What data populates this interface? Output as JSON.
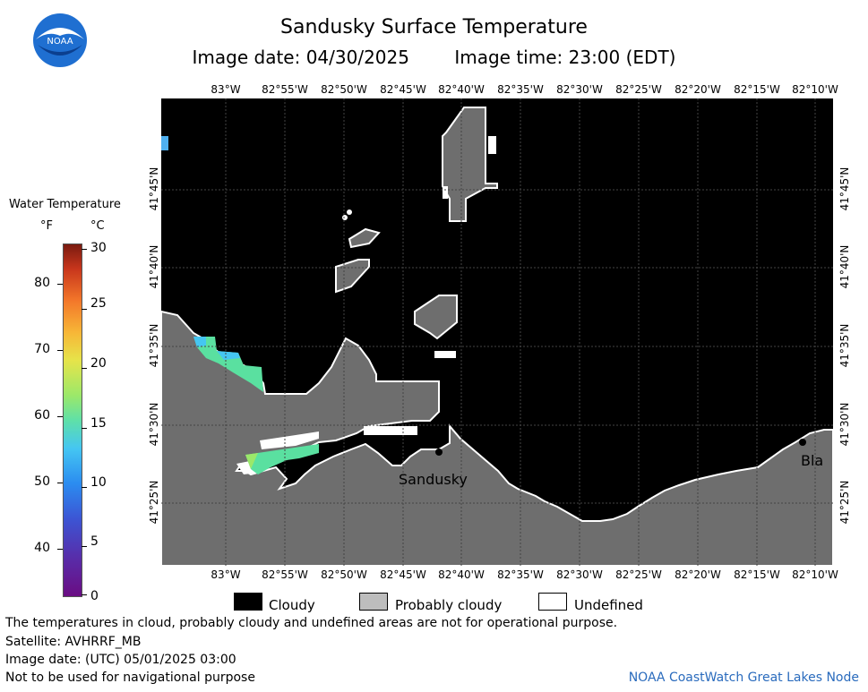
{
  "header": {
    "title": "Sandusky Surface Temperature",
    "image_date": "Image date: 04/30/2025",
    "image_time": "Image time: 23:00 (EDT)"
  },
  "logo": {
    "text": "NOAA",
    "icon": "noaa-logo-icon"
  },
  "map": {
    "lon_labels": [
      "83°W",
      "82°55'W",
      "82°50'W",
      "82°45'W",
      "82°40'W",
      "82°35'W",
      "82°30'W",
      "82°25'W",
      "82°20'W",
      "82°15'W",
      "82°10'W"
    ],
    "lat_labels": [
      "41°45'N",
      "41°40'N",
      "41°35'N",
      "41°30'N",
      "41°25'N"
    ],
    "place_labels": [
      "Sandusky",
      "Bla"
    ]
  },
  "colorbar": {
    "title": "Water Temperature",
    "unit_f": "°F",
    "unit_c": "°C",
    "ticks_f": [
      "80",
      "70",
      "60",
      "50",
      "40"
    ],
    "ticks_c": [
      "30",
      "25",
      "20",
      "15",
      "10",
      "5",
      "0"
    ]
  },
  "legend": {
    "cloudy": "Cloudy",
    "probably_cloudy": "Probably cloudy",
    "undefined": "Undefined",
    "colors": {
      "cloudy": "#000000",
      "probably_cloudy": "#bdbdbd",
      "undefined": "#ffffff",
      "land": "#6e6e6e"
    }
  },
  "footer": {
    "line1": "The temperatures in cloud, probably cloudy and undefined areas are not for operational purpose.",
    "line2": "Satellite: AVHRRF_MB",
    "line3": "Image date: (UTC) 05/01/2025  03:00",
    "line4": "Not to be used for navigational purpose",
    "node": "NOAA CoastWatch Great Lakes Node"
  }
}
